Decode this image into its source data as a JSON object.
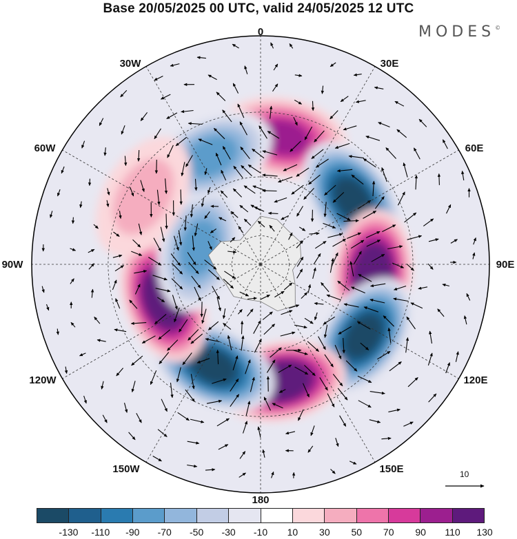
{
  "title": "Base 20/05/2025 00 UTC, valid 24/05/2025 12 UTC",
  "brand": "MODES",
  "brand_mark": "©",
  "map": {
    "projection": "south-polar-stereographic",
    "longitude_labels": {
      "lon_0": "0",
      "lon_30E": "30E",
      "lon_60E": "60E",
      "lon_90E": "90E",
      "lon_120E": "120E",
      "lon_150E": "150E",
      "lon_180": "180",
      "lon_150W": "150W",
      "lon_120W": "120W",
      "lon_90W": "90W",
      "lon_60W": "60W",
      "lon_30W": "30W"
    },
    "reference_vector_label": "10",
    "anomaly_centers": [
      {
        "lon": 10,
        "lat": -47,
        "value": 90
      },
      {
        "lon": 55,
        "lat": -52,
        "value": -130
      },
      {
        "lon": 95,
        "lat": -52,
        "value": 130
      },
      {
        "lon": 125,
        "lat": -48,
        "value": -130
      },
      {
        "lon": 170,
        "lat": -50,
        "value": 130
      },
      {
        "lon": -155,
        "lat": -52,
        "value": -130
      },
      {
        "lon": -110,
        "lat": -55,
        "value": 130
      },
      {
        "lon": -75,
        "lat": -68,
        "value": -70
      },
      {
        "lon": -25,
        "lat": -50,
        "value": -70
      },
      {
        "lon": -60,
        "lat": -45,
        "value": 30
      }
    ]
  },
  "colorbar": {
    "colors": [
      "#1b4a66",
      "#1f5f8d",
      "#2a7bb0",
      "#5b9ccb",
      "#92b6dc",
      "#c2cde5",
      "#e5e6f1",
      "#ffffff",
      "#fbd8dc",
      "#f5adbf",
      "#ee74aa",
      "#d73a9b",
      "#9c1f8f",
      "#5e1a7c"
    ],
    "tick_labels": [
      "-130",
      "-110",
      "-90",
      "-70",
      "-50",
      "-30",
      "-10",
      "10",
      "30",
      "50",
      "70",
      "90",
      "110",
      "130"
    ]
  }
}
